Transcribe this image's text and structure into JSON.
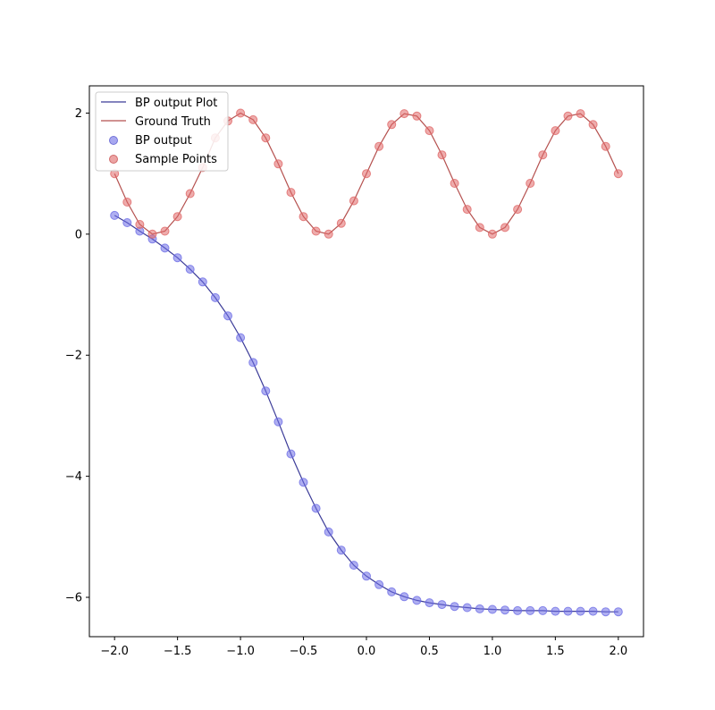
{
  "chart_data": {
    "type": "line",
    "title": "",
    "xlabel": "",
    "ylabel": "",
    "xlim": [
      -2.2,
      2.2
    ],
    "ylim": [
      -6.65,
      2.45
    ],
    "xticks": [
      {
        "value": -2.0,
        "label": "−2.0"
      },
      {
        "value": -1.5,
        "label": "−1.5"
      },
      {
        "value": -1.0,
        "label": "−1.0"
      },
      {
        "value": -0.5,
        "label": "−0.5"
      },
      {
        "value": 0.0,
        "label": "0.0"
      },
      {
        "value": 0.5,
        "label": "0.5"
      },
      {
        "value": 1.0,
        "label": "1.0"
      },
      {
        "value": 1.5,
        "label": "1.5"
      },
      {
        "value": 2.0,
        "label": "2.0"
      }
    ],
    "yticks": [
      {
        "value": 2,
        "label": "2"
      },
      {
        "value": 0,
        "label": "0"
      },
      {
        "value": -2,
        "label": "−2"
      },
      {
        "value": -4,
        "label": "−4"
      },
      {
        "value": -6,
        "label": "−6"
      }
    ],
    "grid": false,
    "legend_position": "top-left",
    "x": [
      -2.0,
      -1.9,
      -1.8,
      -1.7,
      -1.6,
      -1.5,
      -1.4,
      -1.3,
      -1.2,
      -1.1,
      -1.0,
      -0.9,
      -0.8,
      -0.7,
      -0.6,
      -0.5,
      -0.4,
      -0.3,
      -0.2,
      -0.1,
      0.0,
      0.1,
      0.2,
      0.3,
      0.4,
      0.5,
      0.6,
      0.7,
      0.8,
      0.9,
      1.0,
      1.1,
      1.2,
      1.3,
      1.4,
      1.5,
      1.6,
      1.7,
      1.8,
      1.9,
      2.0
    ],
    "series": [
      {
        "name": "BP output Plot",
        "kind": "line",
        "color": "#3b3b98",
        "values": [
          0.31,
          0.19,
          0.05,
          -0.08,
          -0.23,
          -0.39,
          -0.58,
          -0.79,
          -1.05,
          -1.35,
          -1.71,
          -2.12,
          -2.59,
          -3.1,
          -3.63,
          -4.1,
          -4.53,
          -4.92,
          -5.22,
          -5.47,
          -5.65,
          -5.79,
          -5.91,
          -5.99,
          -6.05,
          -6.09,
          -6.12,
          -6.15,
          -6.17,
          -6.19,
          -6.2,
          -6.21,
          -6.22,
          -6.22,
          -6.22,
          -6.23,
          -6.23,
          -6.23,
          -6.23,
          -6.24,
          -6.24
        ]
      },
      {
        "name": "Ground Truth",
        "kind": "line",
        "color": "#b5514f",
        "values": [
          1.0,
          0.53,
          0.16,
          0.0,
          0.05,
          0.29,
          0.67,
          1.1,
          1.59,
          1.87,
          2.0,
          1.89,
          1.59,
          1.16,
          0.69,
          0.29,
          0.05,
          0.0,
          0.18,
          0.55,
          1.0,
          1.45,
          1.81,
          1.99,
          1.95,
          1.71,
          1.31,
          0.84,
          0.41,
          0.11,
          0.0,
          0.11,
          0.41,
          0.84,
          1.31,
          1.71,
          1.95,
          1.99,
          1.81,
          1.45,
          1.0
        ]
      },
      {
        "name": "BP output",
        "kind": "scatter",
        "color": "#6e6ee6",
        "values": [
          0.31,
          0.19,
          0.05,
          -0.08,
          -0.23,
          -0.39,
          -0.58,
          -0.79,
          -1.05,
          -1.35,
          -1.71,
          -2.12,
          -2.59,
          -3.1,
          -3.63,
          -4.1,
          -4.53,
          -4.92,
          -5.22,
          -5.47,
          -5.65,
          -5.79,
          -5.91,
          -5.99,
          -6.05,
          -6.09,
          -6.12,
          -6.15,
          -6.17,
          -6.19,
          -6.2,
          -6.21,
          -6.22,
          -6.22,
          -6.22,
          -6.23,
          -6.23,
          -6.23,
          -6.23,
          -6.24,
          -6.24
        ]
      },
      {
        "name": "Sample Points",
        "kind": "scatter",
        "color": "#e06868",
        "values": [
          1.0,
          0.53,
          0.16,
          0.0,
          0.05,
          0.29,
          0.67,
          1.1,
          1.59,
          1.87,
          2.0,
          1.89,
          1.59,
          1.16,
          0.69,
          0.29,
          0.05,
          0.0,
          0.18,
          0.55,
          1.0,
          1.45,
          1.81,
          1.99,
          1.95,
          1.71,
          1.31,
          0.84,
          0.41,
          0.11,
          0.0,
          0.11,
          0.41,
          0.84,
          1.31,
          1.71,
          1.95,
          1.99,
          1.81,
          1.45,
          1.0
        ]
      }
    ]
  }
}
